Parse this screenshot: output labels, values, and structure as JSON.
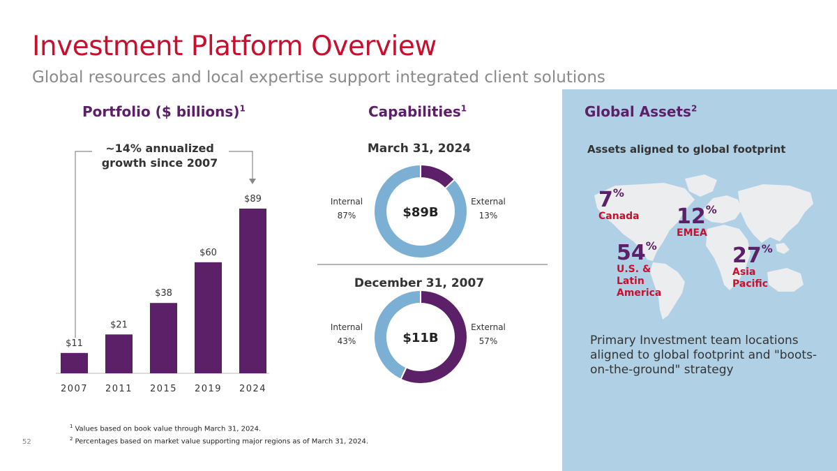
{
  "header": {
    "title": "Investment Platform Overview",
    "subtitle": "Global resources and local expertise support integrated client solutions"
  },
  "sections": {
    "portfolio": {
      "label": "Portfolio ($ billions)",
      "sup": "1"
    },
    "capabilities": {
      "label": "Capabilities",
      "sup": "1"
    },
    "global": {
      "label": "Global Assets",
      "sup": "2"
    }
  },
  "growth_label_line1": "~14% annualized",
  "growth_label_line2": "growth since 2007",
  "chart_data": [
    {
      "type": "bar",
      "title": "Portfolio ($ billions)",
      "categories": [
        "2007",
        "2011",
        "2015",
        "2019",
        "2024"
      ],
      "values": [
        11,
        21,
        38,
        60,
        89
      ],
      "data_labels": [
        "$11",
        "$21",
        "$38",
        "$60",
        "$89"
      ],
      "annotation": "~14% annualized growth since 2007",
      "ylim": [
        0,
        95
      ],
      "color": "#5b2068"
    },
    {
      "type": "pie",
      "title": "March 31, 2024",
      "center_label": "$89B",
      "slices": [
        {
          "name": "Internal",
          "value": 87,
          "label": "87%",
          "color": "#7bafd4"
        },
        {
          "name": "External",
          "value": 13,
          "label": "13%",
          "color": "#5b2068"
        }
      ]
    },
    {
      "type": "pie",
      "title": "December 31, 2007",
      "center_label": "$11B",
      "slices": [
        {
          "name": "Internal",
          "value": 43,
          "label": "43%",
          "color": "#7bafd4"
        },
        {
          "name": "External",
          "value": 57,
          "label": "57%",
          "color": "#5b2068"
        }
      ]
    }
  ],
  "global_assets": {
    "subtitle": "Assets aligned to global footprint",
    "regions": [
      {
        "pct": "7",
        "name_lines": [
          "Canada"
        ]
      },
      {
        "pct": "12",
        "name_lines": [
          "EMEA"
        ]
      },
      {
        "pct": "54",
        "name_lines": [
          "U.S. &",
          "Latin",
          "America"
        ]
      },
      {
        "pct": "27",
        "name_lines": [
          "Asia",
          "Pacific"
        ]
      }
    ],
    "pct_suffix": "%",
    "note": "Primary Investment team locations aligned to global footprint and \"boots-on-the-ground\" strategy"
  },
  "footnotes": [
    {
      "num": "1",
      "text": "Values based on book value through March 31, 2024."
    },
    {
      "num": "2",
      "text": "Percentages based on market value supporting major regions as of March 31, 2024."
    }
  ],
  "page_number": "52"
}
